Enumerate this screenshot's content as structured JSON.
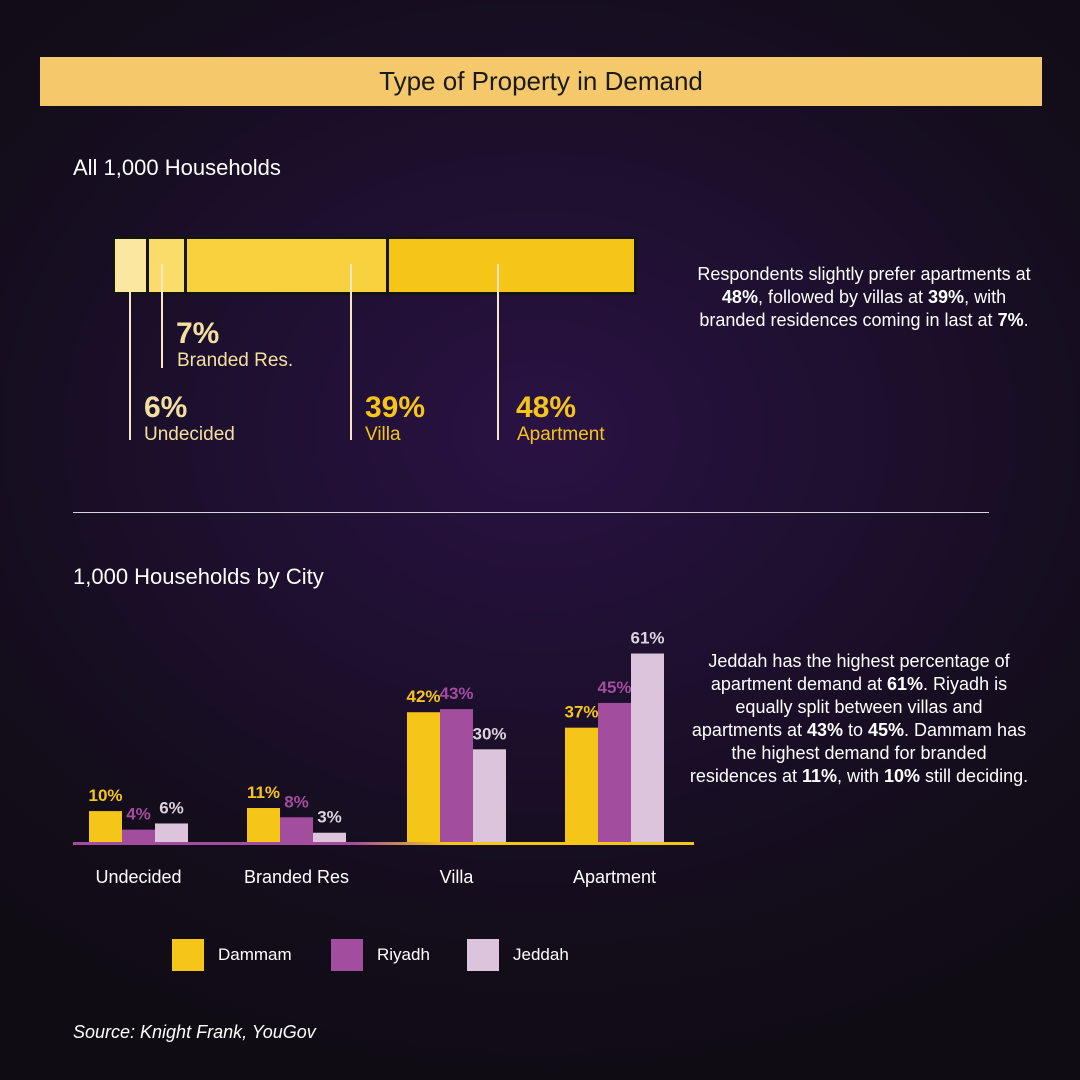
{
  "title": "Type of Property in Demand",
  "section1": {
    "title": "All 1,000 Households",
    "callouts": [
      {
        "value": "6%",
        "label": "Undecided"
      },
      {
        "value": "7%",
        "label": "Branded Res."
      },
      {
        "value": "39%",
        "label": "Villa"
      },
      {
        "value": "48%",
        "label": "Apartment"
      }
    ],
    "note": {
      "t1": "Respondents slightly prefer apartments at ",
      "b1": "48%",
      "t2": ", followed by villas at ",
      "b2": "39%",
      "t3": ", with branded residences coming in last at ",
      "b3": "7%",
      "t4": "."
    }
  },
  "section2": {
    "title": "1,000 Households by City",
    "note": {
      "t1": "Jeddah has the highest percentage of apartment demand at ",
      "b1": "61%",
      "t2": ". Riyadh is equally split between villas and apartments at ",
      "b2": "43%",
      "t3": " to ",
      "b3": "45%",
      "t4": ". Dammam has the highest demand for branded residences at ",
      "b4": "11%",
      "t5": ", with ",
      "b5": "10%",
      "t6": " still deciding."
    }
  },
  "legend": [
    {
      "name": "Dammam",
      "color": "#f5c518"
    },
    {
      "name": "Riyadh",
      "color": "#a34d9e"
    },
    {
      "name": "Jeddah",
      "color": "#dcc4dc"
    }
  ],
  "source": "Source: Knight Frank, YouGov",
  "colors": {
    "accent": "#f5c518",
    "banner": "#f5c96b",
    "undecided": "#fbe7a0",
    "branded": "#f9dc6a",
    "villa": "#f8d23e",
    "apartment": "#f5c518",
    "riyadh": "#a34d9e",
    "jeddah": "#dcc4dc"
  },
  "chart_data": [
    {
      "type": "bar",
      "stacked": true,
      "orientation": "horizontal",
      "categories": [
        "Undecided",
        "Branded Res.",
        "Villa",
        "Apartment"
      ],
      "values": [
        6,
        7,
        39,
        48
      ],
      "unit": "%"
    },
    {
      "type": "bar",
      "categories": [
        "Undecided",
        "Branded Res",
        "Villa",
        "Apartment"
      ],
      "series": [
        {
          "name": "Dammam",
          "values": [
            10,
            11,
            42,
            37
          ]
        },
        {
          "name": "Riyadh",
          "values": [
            4,
            8,
            43,
            45
          ]
        },
        {
          "name": "Jeddah",
          "values": [
            6,
            3,
            30,
            61
          ]
        }
      ],
      "unit": "%",
      "legend": "bottom"
    }
  ]
}
